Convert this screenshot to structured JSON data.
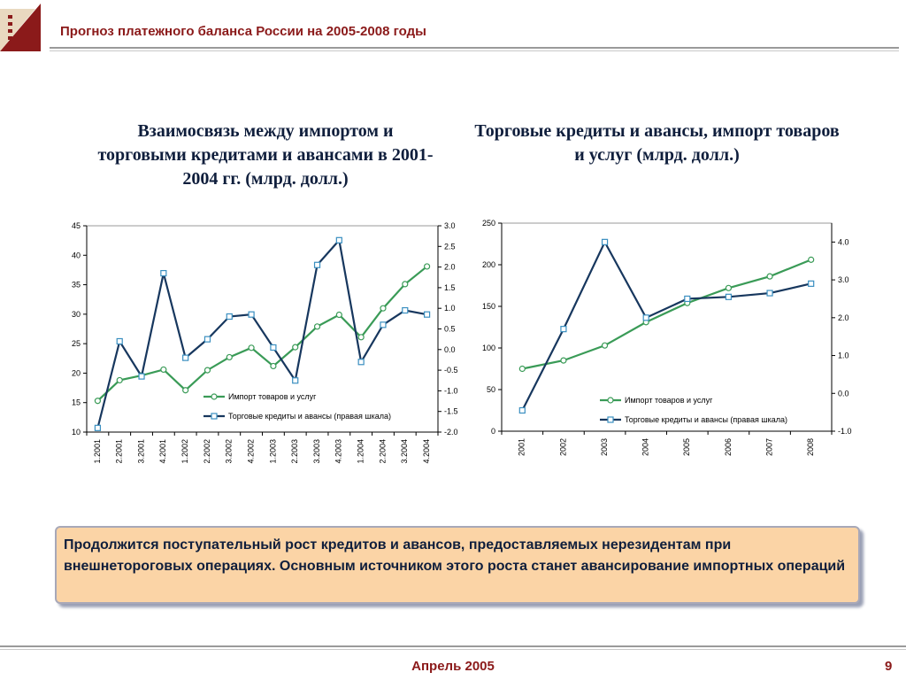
{
  "header": {
    "title": "Прогноз платежного баланса России на 2005-2008 годы"
  },
  "footer": {
    "date": "Апрель 2005",
    "page_number": "9"
  },
  "note": {
    "text": "Продолжится поступательный рост кредитов и авансов, предоставляемых нерезидентам при внешнетороговых операциях. Основным источником этого роста станет авансирование импортных операций"
  },
  "colors": {
    "import": "#3a9b57",
    "credit": "#17375e",
    "title_red": "#8b1a1a",
    "note_bg": "#fbd4a6"
  },
  "chart_data": [
    {
      "type": "line",
      "title": "Взаимосвязь между импортом и торговыми кредитами и авансами в 2001-2004 гг. (млрд. долл.)",
      "categories": [
        "1.2001",
        "2.2001",
        "3.2001",
        "4.2001",
        "1.2002",
        "2.2002",
        "3.2002",
        "4.2002",
        "1.2003",
        "2.2003",
        "3.2003",
        "4.2003",
        "1.2004",
        "2.2004",
        "3.2004",
        "4.2004"
      ],
      "ylim": [
        10,
        45
      ],
      "yticks": [
        "10",
        "15",
        "20",
        "25",
        "30",
        "35",
        "40",
        "45"
      ],
      "y2lim": [
        -2.0,
        3.0
      ],
      "y2ticks": [
        "-2.0",
        "-1.5",
        "-1.0",
        "-0.5",
        "0.0",
        "0.5",
        "1.0",
        "1.5",
        "2.0",
        "2.5",
        "3.0"
      ],
      "legend_position": "inside-bottom-right",
      "series": [
        {
          "name": "Импорт товаров и услуг",
          "axis": "left",
          "marker": "circle",
          "values": [
            15.3,
            18.8,
            19.6,
            20.6,
            17.1,
            20.5,
            22.7,
            24.3,
            21.2,
            24.4,
            27.9,
            29.9,
            26.1,
            31.0,
            35.1,
            38.1
          ]
        },
        {
          "name": "Торговые кредиты и авансы (правая шкала)",
          "axis": "right",
          "marker": "square",
          "values": [
            -1.9,
            0.2,
            -0.65,
            1.85,
            -0.2,
            0.25,
            0.8,
            0.85,
            0.05,
            -0.75,
            2.05,
            2.65,
            -0.3,
            0.6,
            0.95,
            0.85
          ]
        }
      ]
    },
    {
      "type": "line",
      "title": "Торговые кредиты и авансы, импорт товаров и услуг (млрд. долл.)",
      "categories": [
        "2001",
        "2002",
        "2003",
        "2004",
        "2005",
        "2006",
        "2007",
        "2008"
      ],
      "ylim": [
        0,
        250
      ],
      "yticks": [
        "0",
        "50",
        "100",
        "150",
        "200",
        "250"
      ],
      "y2lim": [
        -1.0,
        4.5
      ],
      "y2ticks": [
        "-1.0",
        "0.0",
        "1.0",
        "2.0",
        "3.0",
        "4.0"
      ],
      "legend_position": "inside-bottom-right",
      "series": [
        {
          "name": "Импорт товаров и услуг",
          "axis": "left",
          "marker": "circle",
          "values": [
            75,
            85,
            103,
            131,
            154,
            172,
            186,
            206
          ]
        },
        {
          "name": "Торговые кредиты и авансы (правая шкала)",
          "axis": "right",
          "marker": "square",
          "values": [
            -0.45,
            1.7,
            4.0,
            2.0,
            2.5,
            2.55,
            2.65,
            2.9
          ]
        }
      ]
    }
  ]
}
